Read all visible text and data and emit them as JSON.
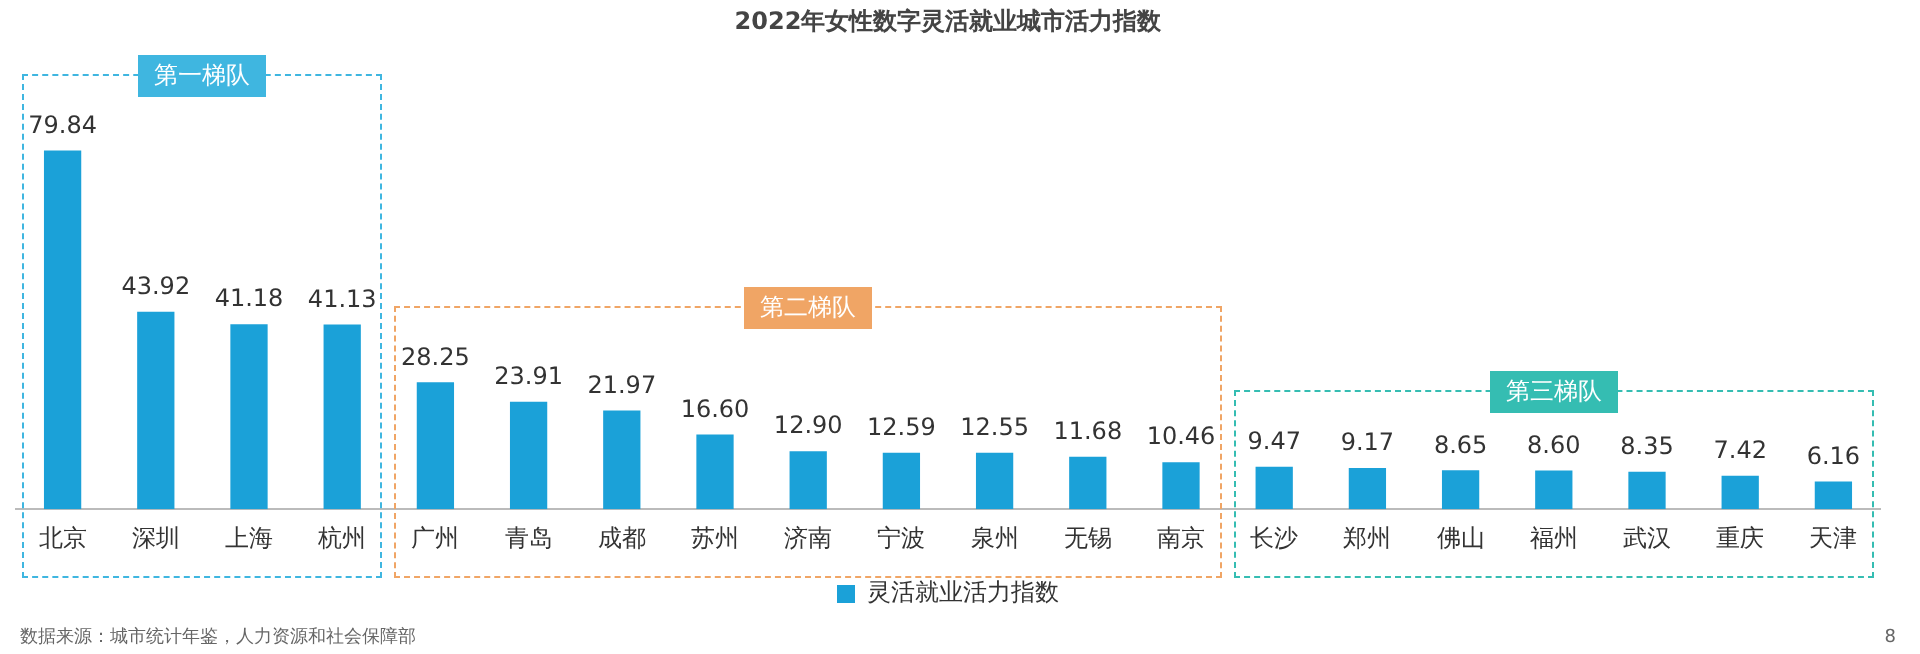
{
  "chart_data": {
    "type": "bar",
    "title": "2022年女性数字灵活就业城市活力指数",
    "categories": [
      "北京",
      "深圳",
      "上海",
      "杭州",
      "广州",
      "青岛",
      "成都",
      "苏州",
      "济南",
      "宁波",
      "泉州",
      "无锡",
      "南京",
      "长沙",
      "郑州",
      "佛山",
      "福州",
      "武汉",
      "重庆",
      "天津"
    ],
    "series": [
      {
        "name": "灵活就业活力指数",
        "color": "#1ba1d8",
        "values": [
          79.84,
          43.92,
          41.18,
          41.13,
          28.25,
          23.91,
          21.97,
          16.6,
          12.9,
          12.59,
          12.55,
          11.68,
          10.46,
          9.47,
          9.17,
          8.65,
          8.6,
          8.35,
          7.42,
          6.16
        ],
        "value_labels": [
          "79.84",
          "43.92",
          "41.18",
          "41.13",
          "28.25",
          "23.91",
          "21.97",
          "16.60",
          "12.90",
          "12.59",
          "12.55",
          "11.68",
          "10.46",
          "9.47",
          "9.17",
          "8.65",
          "8.60",
          "8.35",
          "7.42",
          "6.16"
        ]
      }
    ],
    "legend": "bottom",
    "grid": false,
    "tick_labels": "x",
    "annotations": [
      "第一梯队",
      "第二梯队",
      "第三梯队",
      "数据来源：城市统计年鉴，人力资源和社会保障部",
      "8"
    ]
  }
}
